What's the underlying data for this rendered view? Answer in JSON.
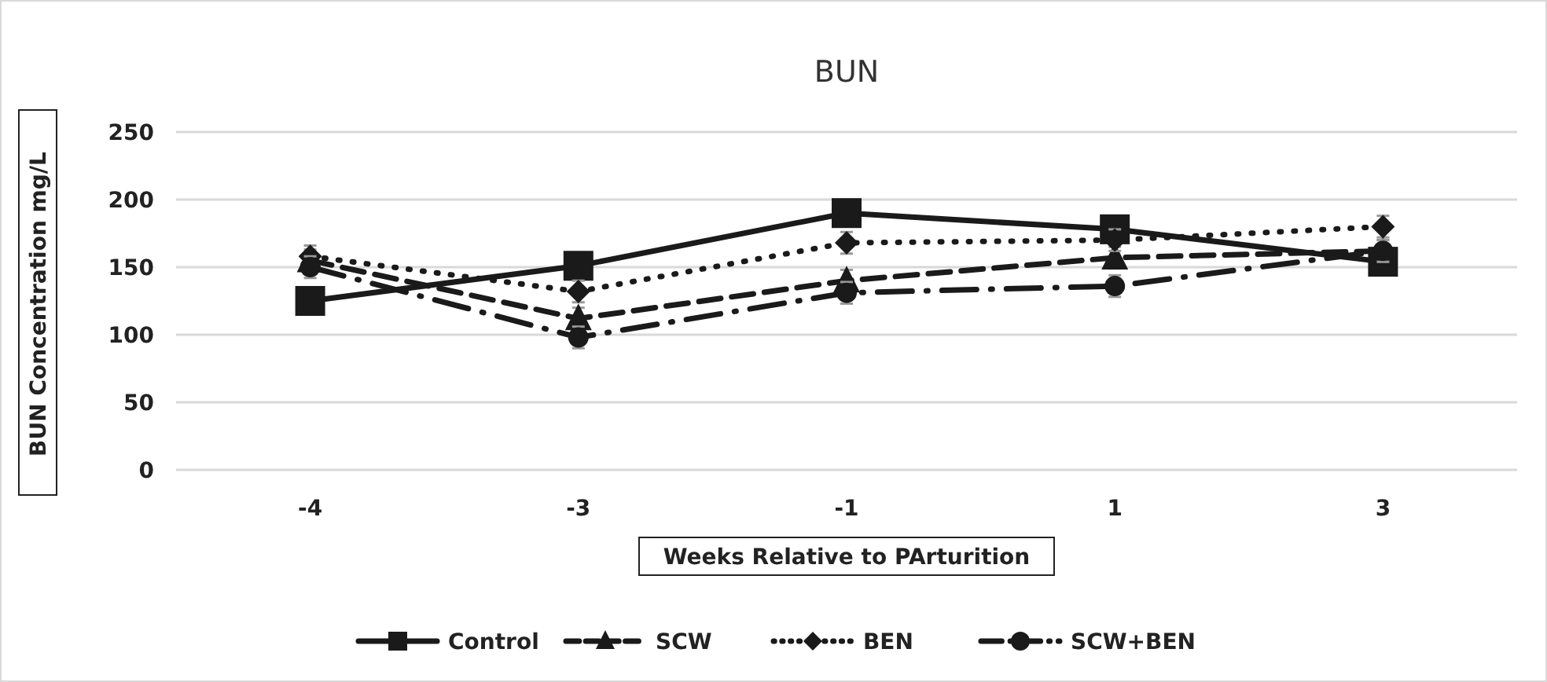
{
  "chart_data": {
    "type": "line",
    "title": "BUN",
    "xlabel": "Weeks Relative to PArturition",
    "ylabel": "BUN Concentration mg/L",
    "categories": [
      "-4",
      "-3",
      "-1",
      "1",
      "3"
    ],
    "ylim": [
      0,
      250
    ],
    "yticks": [
      0,
      50,
      100,
      150,
      200,
      250
    ],
    "grid": "y",
    "legend": "bottom",
    "series": [
      {
        "name": "Control",
        "color": "#1a1a1a",
        "marker": "square",
        "line_style": "solid",
        "values": [
          125,
          151,
          190,
          178,
          154
        ],
        "errors": [
          8,
          8,
          8,
          8,
          8
        ]
      },
      {
        "name": "SCW",
        "color": "#1a1a1a",
        "marker": "triangle",
        "line_style": "dashed",
        "values": [
          155,
          112,
          140,
          157,
          162
        ],
        "errors": [
          8,
          8,
          8,
          8,
          8
        ]
      },
      {
        "name": "BEN",
        "color": "#1a1a1a",
        "marker": "diamond",
        "line_style": "dotted",
        "values": [
          158,
          132,
          168,
          170,
          180
        ],
        "errors": [
          8,
          8,
          8,
          8,
          8
        ]
      },
      {
        "name": "SCW+BEN",
        "color": "#1a1a1a",
        "marker": "circle",
        "line_style": "dashdot",
        "values": [
          150,
          98,
          131,
          136,
          162
        ],
        "errors": [
          8,
          8,
          8,
          8,
          8
        ]
      }
    ]
  }
}
